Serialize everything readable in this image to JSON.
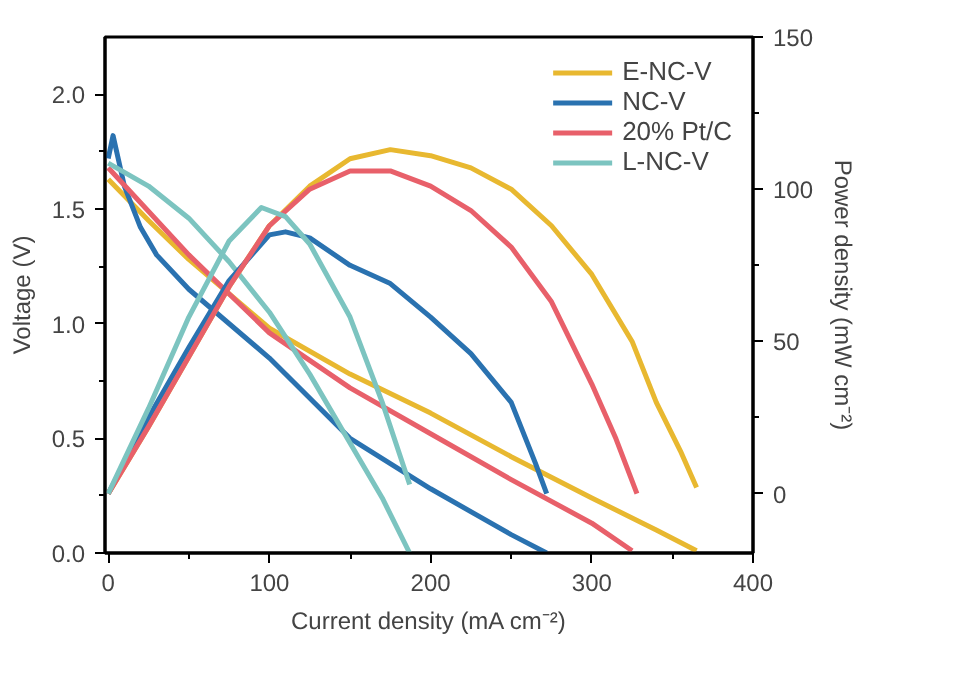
{
  "chart_data": {
    "type": "line",
    "xlabel": "Current density (mA cm⁻²)",
    "ylabel": "Voltage (V)",
    "y2label": "Power density (mW cm⁻²)",
    "xlim": [
      -2,
      400
    ],
    "xticks": [
      0,
      {
        "value": 50,
        "label": null
      },
      100,
      {
        "value": 150,
        "label": null
      },
      200,
      {
        "value": 250,
        "label": null
      },
      300,
      {
        "value": 350,
        "label": null
      },
      400
    ],
    "ylim": [
      0,
      2.25
    ],
    "yticks": [
      {
        "value": 0,
        "label": "0.0"
      },
      {
        "value": 0.25,
        "label": null
      },
      {
        "value": 0.5,
        "label": "0.5"
      },
      {
        "value": 0.75,
        "label": null
      },
      {
        "value": 1,
        "label": "1.0"
      },
      {
        "value": 1.25,
        "label": null
      },
      {
        "value": 1.5,
        "label": "1.5"
      },
      {
        "value": 1.75,
        "label": null
      },
      {
        "value": 2,
        "label": "2.0"
      }
    ],
    "y2lim": [
      -19.5,
      150
    ],
    "y2ticks": [
      0,
      {
        "value": 25,
        "label": null
      },
      50,
      {
        "value": 75,
        "label": null
      },
      100,
      {
        "value": 125,
        "label": null
      },
      150
    ],
    "legend": "top right",
    "grid": false,
    "marker": "none",
    "line_style": "solid",
    "series": [
      {
        "name": "E-NC-V",
        "color": "#e8b830",
        "x": [
          0,
          25,
          50,
          100,
          150,
          200,
          250,
          300,
          340,
          365
        ],
        "values": [
          1.63,
          1.45,
          1.28,
          0.98,
          0.78,
          0.61,
          0.42,
          0.24,
          0.1,
          0.01
        ]
      },
      {
        "name": "NC-V",
        "color": "#2a72b0",
        "x": [
          0,
          3,
          10,
          20,
          30,
          50,
          100,
          150,
          200,
          250,
          272
        ],
        "values": [
          1.72,
          1.82,
          1.6,
          1.42,
          1.3,
          1.15,
          0.85,
          0.5,
          0.28,
          0.08,
          0
        ]
      },
      {
        "name": "20% Pt/C",
        "color": "#e8606a",
        "x": [
          0,
          50,
          100,
          150,
          200,
          250,
          300,
          325
        ],
        "values": [
          1.68,
          1.3,
          0.96,
          0.72,
          0.52,
          0.32,
          0.13,
          0.01
        ]
      },
      {
        "name": "L-NC-V",
        "color": "#7cc4c0",
        "x": [
          0,
          25,
          50,
          75,
          100,
          125,
          150,
          170,
          187
        ],
        "values": [
          1.7,
          1.6,
          1.46,
          1.27,
          1.05,
          0.78,
          0.48,
          0.24,
          0
        ]
      },
      {
        "color": "#e8b830",
        "axis": "y2",
        "x": [
          0,
          25,
          50,
          75,
          100,
          125,
          150,
          175,
          200,
          225,
          250,
          275,
          300,
          325,
          340,
          355,
          365
        ],
        "values": [
          0,
          22,
          45,
          68,
          88,
          101,
          110,
          113,
          111,
          107,
          100,
          88,
          72,
          50,
          30,
          14,
          2
        ]
      },
      {
        "color": "#2a72b0",
        "axis": "y2",
        "x": [
          0,
          25,
          50,
          75,
          100,
          110,
          125,
          150,
          175,
          200,
          225,
          250,
          265,
          272
        ],
        "values": [
          0,
          25,
          48,
          70,
          85,
          86,
          84,
          75,
          69,
          58,
          46,
          30,
          10,
          0
        ]
      },
      {
        "color": "#e8606a",
        "axis": "y2",
        "x": [
          0,
          25,
          50,
          75,
          100,
          125,
          150,
          175,
          200,
          225,
          250,
          275,
          300,
          315,
          328
        ],
        "values": [
          0,
          22,
          45,
          68,
          88,
          100,
          106,
          106,
          101,
          93,
          81,
          63,
          36,
          18,
          0
        ]
      },
      {
        "color": "#7cc4c0",
        "axis": "y2",
        "x": [
          0,
          25,
          50,
          75,
          95,
          110,
          125,
          150,
          170,
          187
        ],
        "values": [
          0,
          28,
          58,
          83,
          94,
          91,
          82,
          58,
          30,
          3
        ]
      }
    ]
  }
}
